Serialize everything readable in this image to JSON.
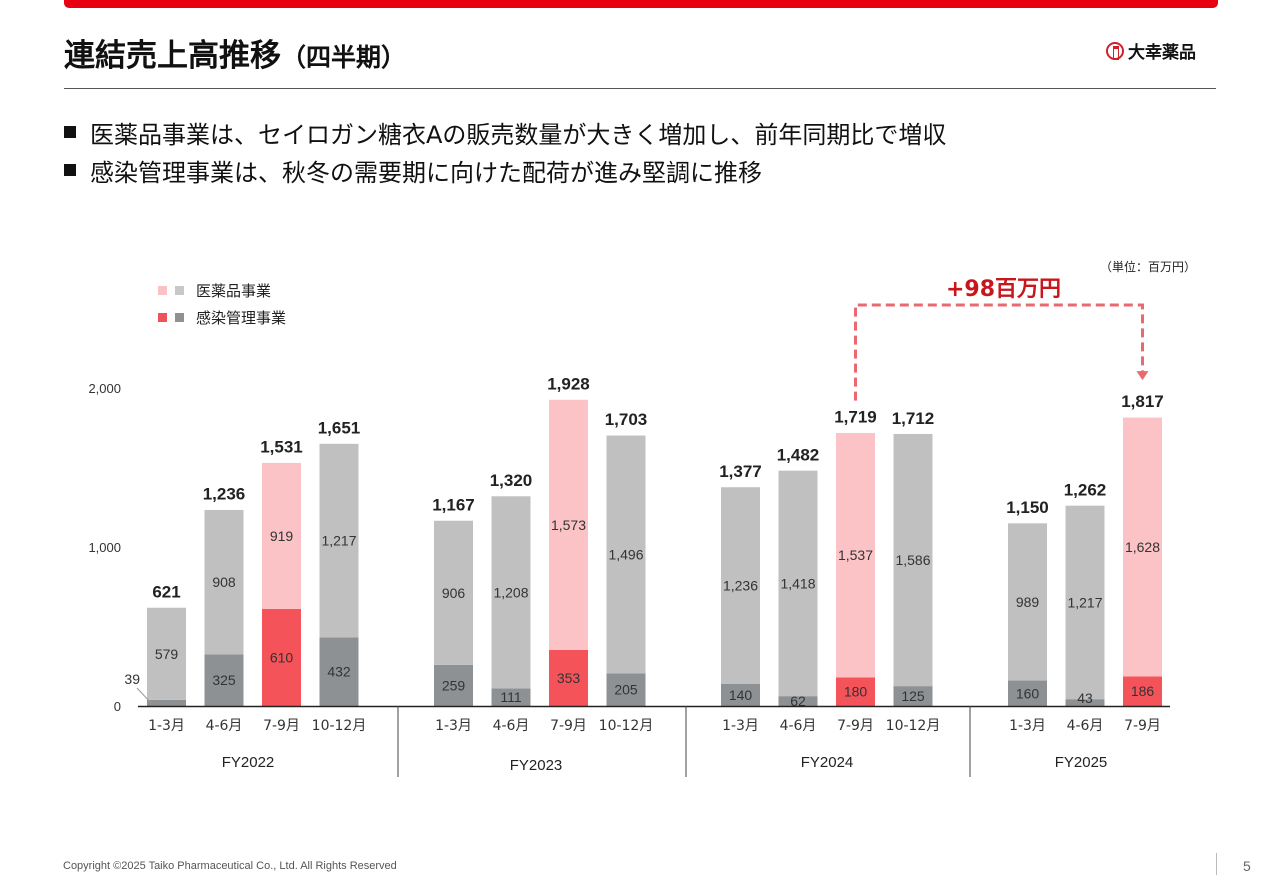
{
  "header": {
    "title": "連結売上高推移",
    "title_suffix": "（四半期）",
    "company_logo_text": "大幸薬品",
    "accent_color": "#e60012"
  },
  "bullets": [
    "医薬品事業は、セイロガン糖衣Aの販売数量が大きく増加し、前年同期比で増収",
    "感染管理事業は、秋冬の需要期に向けた配荷が進み堅調に推移"
  ],
  "unit_note": "（単位：百万円）",
  "legend": [
    {
      "label": "医薬品事業",
      "colors": [
        "#f9c2c4",
        "#c8c8c8"
      ]
    },
    {
      "label": "感染管理事業",
      "colors": [
        "#f0525a",
        "#8f9295"
      ]
    }
  ],
  "change_annotation": {
    "label": "+98百万円",
    "from": "FY2024 7-9月",
    "to": "FY2025 7-9月",
    "color": "#e86a70"
  },
  "footer": {
    "copyright": "Copyright ©2025  Taiko Pharmaceutical Co., Ltd. All Rights Reserved",
    "page_number": "5"
  },
  "chart_data": {
    "type": "bar",
    "stacked": true,
    "title": "連結売上高推移（四半期）",
    "xlabel": "",
    "ylabel": "",
    "unit": "百万円",
    "ylim": [
      0,
      2000
    ],
    "yticks": [
      0,
      1000,
      2000
    ],
    "ytick_labels": [
      "0",
      "1,000",
      "2,000"
    ],
    "grid": false,
    "legend_position": "top-left",
    "groups": [
      {
        "name": "FY2022",
        "quarters": [
          "1-3月",
          "4-6月",
          "7-9月",
          "10-12月"
        ]
      },
      {
        "name": "FY2023",
        "quarters": [
          "1-3月",
          "4-6月",
          "7-9月",
          "10-12月"
        ]
      },
      {
        "name": "FY2024",
        "quarters": [
          "1-3月",
          "4-6月",
          "7-9月",
          "10-12月"
        ]
      },
      {
        "name": "FY2025",
        "quarters": [
          "1-3月",
          "4-6月",
          "7-9月"
        ]
      }
    ],
    "series": [
      {
        "name": "感染管理事業",
        "values": [
          [
            39,
            325,
            610,
            432
          ],
          [
            259,
            111,
            353,
            205
          ],
          [
            140,
            62,
            180,
            125
          ],
          [
            160,
            43,
            186
          ]
        ]
      },
      {
        "name": "医薬品事業",
        "values": [
          [
            579,
            908,
            919,
            1217
          ],
          [
            906,
            1208,
            1573,
            1496
          ],
          [
            1236,
            1418,
            1537,
            1586
          ],
          [
            989,
            1217,
            1628
          ]
        ]
      }
    ],
    "totals": [
      [
        621,
        1236,
        1531,
        1651
      ],
      [
        1167,
        1320,
        1928,
        1703
      ],
      [
        1377,
        1482,
        1719,
        1712
      ],
      [
        1150,
        1262,
        1817
      ]
    ],
    "highlight_quarter": "7-9月",
    "colors": {
      "pharma": "#c0c0c0",
      "pharma_highlight": "#fbc3c5",
      "infection": "#8e9194",
      "infection_highlight": "#f5535a"
    }
  }
}
